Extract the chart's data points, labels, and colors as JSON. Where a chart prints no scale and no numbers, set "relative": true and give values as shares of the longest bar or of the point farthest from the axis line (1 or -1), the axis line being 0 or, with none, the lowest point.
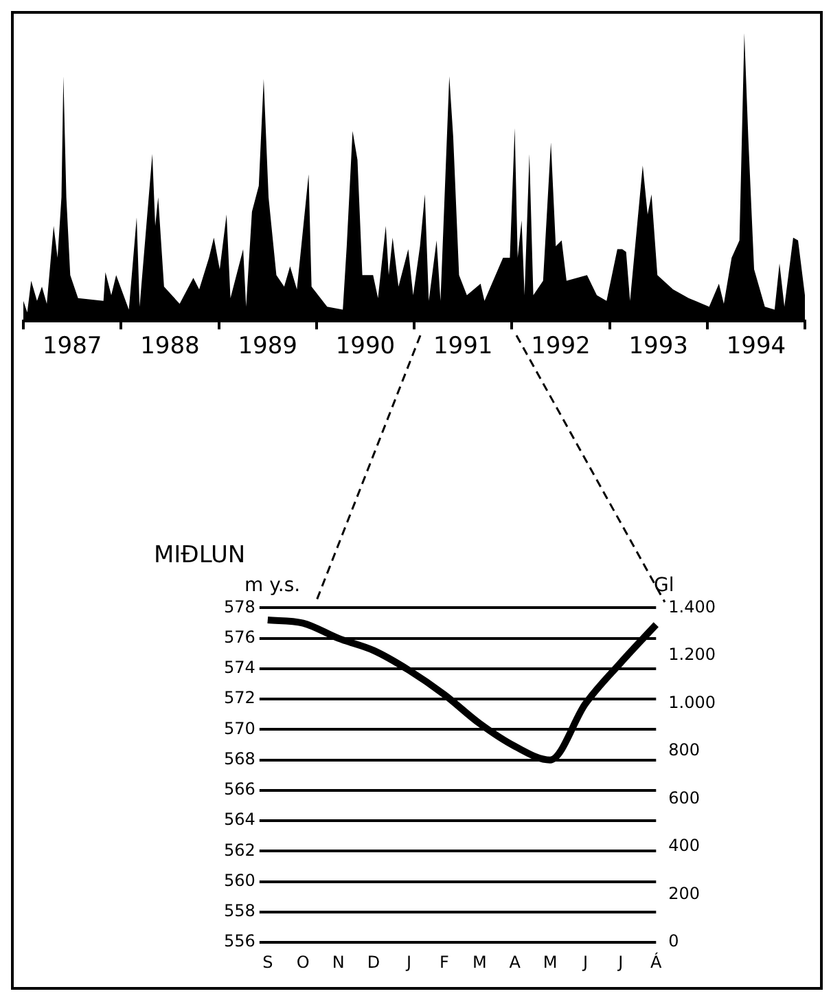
{
  "chart_data": [
    {
      "type": "area",
      "relative": true,
      "xlim": [
        1987,
        1995
      ],
      "xticks": [
        {
          "value": 1987,
          "label": null
        },
        {
          "value": 1987.5,
          "label": "1987"
        },
        {
          "value": 1988,
          "label": null
        },
        {
          "value": 1988.5,
          "label": "1988"
        },
        {
          "value": 1989,
          "label": null
        },
        {
          "value": 1989.5,
          "label": "1989"
        },
        {
          "value": 1990,
          "label": null
        },
        {
          "value": 1990.5,
          "label": "1990"
        },
        {
          "value": 1991,
          "label": null
        },
        {
          "value": 1991.5,
          "label": "1991"
        },
        {
          "value": 1992,
          "label": null
        },
        {
          "value": 1992.5,
          "label": "1992"
        },
        {
          "value": 1993,
          "label": null
        },
        {
          "value": 1993.5,
          "label": "1993"
        },
        {
          "value": 1994,
          "label": null
        },
        {
          "value": 1994.5,
          "label": "1994"
        },
        {
          "value": 1995,
          "label": null
        }
      ],
      "x": [
        1987.0,
        1987.04,
        1987.08,
        1987.14,
        1987.19,
        1987.24,
        1987.31,
        1987.35,
        1987.39,
        1987.41,
        1987.44,
        1987.48,
        1987.56,
        1987.82,
        1987.84,
        1987.9,
        1987.95,
        1988.08,
        1988.16,
        1988.19,
        1988.32,
        1988.35,
        1988.38,
        1988.44,
        1988.6,
        1988.74,
        1988.8,
        1988.9,
        1988.95,
        1989.01,
        1989.08,
        1989.12,
        1989.25,
        1989.28,
        1989.34,
        1989.41,
        1989.46,
        1989.51,
        1989.59,
        1989.67,
        1989.73,
        1989.8,
        1989.92,
        1989.95,
        1990.11,
        1990.27,
        1990.31,
        1990.37,
        1990.42,
        1990.47,
        1990.58,
        1990.63,
        1990.71,
        1990.74,
        1990.78,
        1990.84,
        1990.94,
        1990.99,
        1991.06,
        1991.11,
        1991.15,
        1991.23,
        1991.27,
        1991.36,
        1991.4,
        1991.46,
        1991.54,
        1991.68,
        1991.72,
        1991.91,
        1991.98,
        1992.03,
        1992.06,
        1992.1,
        1992.13,
        1992.18,
        1992.22,
        1992.32,
        1992.4,
        1992.45,
        1992.51,
        1992.56,
        1992.77,
        1992.87,
        1992.97,
        1993.08,
        1993.13,
        1993.17,
        1993.21,
        1993.34,
        1993.39,
        1993.43,
        1993.49,
        1993.65,
        1993.81,
        1994.02,
        1994.12,
        1994.17,
        1994.25,
        1994.33,
        1994.38,
        1994.42,
        1994.48,
        1994.59,
        1994.69,
        1994.74,
        1994.79,
        1994.88,
        1994.93,
        1995.0
      ],
      "series": [
        {
          "color": "#000000",
          "values": [
            0.07,
            0.03,
            0.14,
            0.07,
            0.12,
            0.06,
            0.33,
            0.22,
            0.43,
            0.85,
            0.43,
            0.16,
            0.08,
            0.07,
            0.17,
            0.09,
            0.16,
            0.04,
            0.36,
            0.05,
            0.58,
            0.33,
            0.43,
            0.12,
            0.06,
            0.15,
            0.11,
            0.22,
            0.29,
            0.18,
            0.37,
            0.08,
            0.25,
            0.05,
            0.38,
            0.47,
            0.84,
            0.43,
            0.16,
            0.12,
            0.19,
            0.11,
            0.51,
            0.12,
            0.05,
            0.04,
            0.26,
            0.66,
            0.56,
            0.16,
            0.16,
            0.08,
            0.33,
            0.16,
            0.29,
            0.12,
            0.25,
            0.09,
            0.26,
            0.44,
            0.07,
            0.28,
            0.07,
            0.85,
            0.64,
            0.16,
            0.09,
            0.13,
            0.07,
            0.22,
            0.22,
            0.67,
            0.22,
            0.35,
            0.09,
            0.58,
            0.09,
            0.14,
            0.62,
            0.26,
            0.28,
            0.14,
            0.16,
            0.09,
            0.07,
            0.25,
            0.25,
            0.24,
            0.07,
            0.54,
            0.37,
            0.44,
            0.16,
            0.11,
            0.08,
            0.05,
            0.13,
            0.06,
            0.22,
            0.28,
            1.0,
            0.64,
            0.18,
            0.05,
            0.04,
            0.2,
            0.05,
            0.29,
            0.28,
            0.09
          ]
        }
      ]
    },
    {
      "type": "line",
      "title": "MIÐLUN",
      "ylabel": "m y.s.",
      "y2label": "Gl",
      "categories": [
        "S",
        "O",
        "N",
        "D",
        "J",
        "F",
        "M",
        "A",
        "M",
        "J",
        "J",
        "Á"
      ],
      "ylim": [
        556,
        578
      ],
      "yticks": [
        556,
        558,
        560,
        562,
        564,
        566,
        568,
        570,
        572,
        574,
        576,
        578
      ],
      "y2lim": [
        0,
        1400
      ],
      "y2ticks": [
        0,
        200,
        400,
        600,
        800,
        {
          "value": 1000,
          "label": "1.000"
        },
        {
          "value": 1200,
          "label": "1.200"
        },
        {
          "value": 1400,
          "label": "1.400"
        }
      ],
      "grid": "y",
      "marker": "none",
      "series": [
        {
          "color": "#000000",
          "values": [
            577.2,
            577.0,
            576.0,
            575.2,
            573.9,
            572.3,
            570.4,
            568.9,
            568.0,
            571.7,
            574.4,
            576.9
          ]
        }
      ]
    }
  ]
}
